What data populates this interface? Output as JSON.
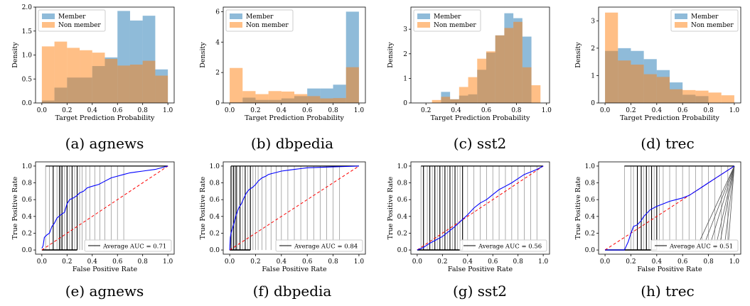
{
  "legend_member": "Member",
  "legend_nonmember": "Non member",
  "colors": {
    "member": "#1f77b4",
    "nonmember": "#ff7f0e",
    "roc": "#0000ff",
    "diag": "#ff0000"
  },
  "chart_data": [
    {
      "type": "bar",
      "id": "hist-agnews",
      "caption": "(a) agnews",
      "xlabel": "Target Prediction Probability",
      "ylabel": "Density",
      "xlim": [
        -0.05,
        1.05
      ],
      "ylim": [
        0,
        2.0
      ],
      "xticks": [
        0.0,
        0.2,
        0.4,
        0.6,
        0.8,
        1.0
      ],
      "xtick_labels": [
        "0.0",
        "0.2",
        "0.4",
        "0.6",
        "0.8",
        "1.0"
      ],
      "yticks": [
        0.0,
        0.5,
        1.0,
        1.5,
        2.0
      ],
      "ytick_labels": [
        "0.0",
        "0.5",
        "1.0",
        "1.5",
        "2.0"
      ],
      "legend_position": "top-left",
      "bin_edges": [
        0.0,
        0.1,
        0.2,
        0.3,
        0.4,
        0.5,
        0.6,
        0.7,
        0.8,
        0.9,
        1.0
      ],
      "series": [
        {
          "name": "Member",
          "values": [
            0.05,
            0.32,
            0.53,
            0.53,
            0.77,
            0.95,
            1.92,
            1.72,
            1.82,
            0.7
          ]
        },
        {
          "name": "Non member",
          "values": [
            1.18,
            1.28,
            1.15,
            1.1,
            1.05,
            0.92,
            0.78,
            0.8,
            0.88,
            0.57
          ]
        }
      ]
    },
    {
      "type": "bar",
      "id": "hist-dbpedia",
      "caption": "(b) dbpedia",
      "xlabel": "Target Prediction Probability",
      "ylabel": "Density",
      "xlim": [
        -0.05,
        1.05
      ],
      "ylim": [
        0,
        6.3
      ],
      "xticks": [
        0.0,
        0.2,
        0.4,
        0.6,
        0.8,
        1.0
      ],
      "xtick_labels": [
        "0.0",
        "0.2",
        "0.4",
        "0.6",
        "0.8",
        "1.0"
      ],
      "yticks": [
        0,
        2,
        4,
        6
      ],
      "ytick_labels": [
        "0",
        "2",
        "4",
        "6"
      ],
      "legend_position": "top-left",
      "bin_edges": [
        0.0,
        0.1,
        0.2,
        0.3,
        0.4,
        0.5,
        0.6,
        0.7,
        0.8,
        0.9,
        1.0
      ],
      "series": [
        {
          "name": "Member",
          "values": [
            0.05,
            0.35,
            0.2,
            0.2,
            0.3,
            0.45,
            0.95,
            0.95,
            1.2,
            6.0
          ]
        },
        {
          "name": "Non member",
          "values": [
            2.3,
            0.78,
            0.58,
            0.78,
            0.75,
            0.58,
            0.45,
            0.3,
            0.32,
            2.35
          ]
        }
      ]
    },
    {
      "type": "bar",
      "id": "hist-sst2",
      "caption": "(c) sst2",
      "xlabel": "Target Prediction Probability",
      "ylabel": "Density",
      "xlim": [
        0.1,
        1.02
      ],
      "ylim": [
        0,
        3.9
      ],
      "xticks": [
        0.2,
        0.4,
        0.6,
        0.8,
        1.0
      ],
      "xtick_labels": [
        "0.2",
        "0.4",
        "0.6",
        "0.8",
        "1.0"
      ],
      "yticks": [
        0,
        1,
        2,
        3
      ],
      "ytick_labels": [
        "0",
        "1",
        "2",
        "3"
      ],
      "legend_position": "top-left",
      "bin_edges": [
        0.24,
        0.3,
        0.36,
        0.42,
        0.48,
        0.54,
        0.6,
        0.66,
        0.72,
        0.78,
        0.84,
        0.9,
        0.96
      ],
      "series": [
        {
          "name": "Member",
          "values": [
            0.0,
            0.45,
            0.15,
            0.3,
            0.35,
            1.35,
            2.05,
            2.75,
            3.65,
            3.45,
            2.7,
            0.0
          ]
        },
        {
          "name": "Non member",
          "values": [
            0.12,
            0.25,
            0.15,
            0.65,
            1.05,
            1.8,
            2.1,
            2.75,
            3.05,
            3.3,
            1.45,
            0.72
          ]
        }
      ]
    },
    {
      "type": "bar",
      "id": "hist-trec",
      "caption": "(d) trec",
      "xlabel": "Target Prediction Probability",
      "ylabel": "Density",
      "xlim": [
        -0.05,
        1.05
      ],
      "ylim": [
        0,
        3.5
      ],
      "xticks": [
        0.0,
        0.2,
        0.4,
        0.6,
        0.8,
        1.0
      ],
      "xtick_labels": [
        "0.0",
        "0.2",
        "0.4",
        "0.6",
        "0.8",
        "1.0"
      ],
      "yticks": [
        0,
        1,
        2,
        3
      ],
      "ytick_labels": [
        "0",
        "1",
        "2",
        "3"
      ],
      "legend_position": "top-right",
      "bin_edges": [
        0.0,
        0.1,
        0.2,
        0.3,
        0.4,
        0.5,
        0.6,
        0.7,
        0.8,
        0.9,
        1.0
      ],
      "series": [
        {
          "name": "Member",
          "values": [
            1.9,
            2.0,
            1.9,
            1.6,
            1.2,
            0.75,
            0.3,
            0.25,
            0.0,
            0.0
          ]
        },
        {
          "name": "Non member",
          "values": [
            3.3,
            1.55,
            1.4,
            1.05,
            0.95,
            0.5,
            0.47,
            0.45,
            0.38,
            0.28
          ]
        }
      ]
    },
    {
      "type": "line",
      "id": "roc-agnews",
      "caption": "(e) agnews",
      "xlabel": "False Positive Rate",
      "ylabel": "True Positive Rate",
      "xlim": [
        -0.05,
        1.05
      ],
      "ylim": [
        -0.05,
        1.05
      ],
      "xticks": [
        0.0,
        0.2,
        0.4,
        0.6,
        0.8,
        1.0
      ],
      "xtick_labels": [
        "0.0",
        "0.2",
        "0.4",
        "0.6",
        "0.8",
        "1.0"
      ],
      "yticks": [
        0.0,
        0.2,
        0.4,
        0.6,
        0.8,
        1.0
      ],
      "ytick_labels": [
        "0.0",
        "0.2",
        "0.4",
        "0.6",
        "0.8",
        "1.0"
      ],
      "legend_position": "bottom-right",
      "legend_label": "Average AUC = 0.71",
      "roc_x": [
        0,
        0.01,
        0.02,
        0.04,
        0.06,
        0.08,
        0.1,
        0.12,
        0.15,
        0.18,
        0.2,
        0.22,
        0.25,
        0.28,
        0.3,
        0.33,
        0.36,
        0.4,
        0.45,
        0.5,
        0.55,
        0.6,
        0.65,
        0.7,
        0.75,
        0.8,
        0.9,
        1.0
      ],
      "roc_y": [
        0.02,
        0.05,
        0.15,
        0.18,
        0.2,
        0.28,
        0.32,
        0.38,
        0.42,
        0.45,
        0.55,
        0.6,
        0.62,
        0.65,
        0.68,
        0.7,
        0.74,
        0.76,
        0.78,
        0.82,
        0.86,
        0.88,
        0.9,
        0.92,
        0.93,
        0.94,
        0.96,
        1.0
      ],
      "threshold_x": [
        0.03,
        0.06,
        0.09,
        0.12,
        0.14,
        0.15,
        0.16,
        0.18,
        0.2,
        0.22,
        0.24,
        0.26,
        0.28,
        0.3,
        0.32,
        0.35,
        0.38,
        0.42,
        0.46,
        0.5,
        0.55,
        0.6,
        0.65
      ],
      "threshold_dark_x": [
        0.09,
        0.14,
        0.16,
        0.2,
        0.24,
        0.28
      ]
    },
    {
      "type": "line",
      "id": "roc-dbpedia",
      "caption": "(f) dbpedia",
      "xlabel": "False Positive Rate",
      "ylabel": "True Positive Rate",
      "xlim": [
        -0.05,
        1.05
      ],
      "ylim": [
        -0.05,
        1.05
      ],
      "xticks": [
        0.0,
        0.2,
        0.4,
        0.6,
        0.8,
        1.0
      ],
      "xtick_labels": [
        "0.0",
        "0.2",
        "0.4",
        "0.6",
        "0.8",
        "1.0"
      ],
      "yticks": [
        0.0,
        0.2,
        0.4,
        0.6,
        0.8,
        1.0
      ],
      "ytick_labels": [
        "0.0",
        "0.2",
        "0.4",
        "0.6",
        "0.8",
        "1.0"
      ],
      "legend_position": "bottom-right",
      "legend_label": "Average AUC = 0.84",
      "roc_x": [
        0,
        0.005,
        0.01,
        0.02,
        0.03,
        0.05,
        0.07,
        0.09,
        0.11,
        0.13,
        0.15,
        0.18,
        0.2,
        0.22,
        0.25,
        0.28,
        0.3,
        0.35,
        0.4,
        0.45,
        0.5,
        0.55,
        0.6,
        0.7,
        0.8,
        0.9,
        1.0
      ],
      "roc_y": [
        0.0,
        0.15,
        0.2,
        0.25,
        0.3,
        0.42,
        0.5,
        0.55,
        0.62,
        0.68,
        0.72,
        0.75,
        0.78,
        0.82,
        0.86,
        0.88,
        0.9,
        0.92,
        0.94,
        0.95,
        0.96,
        0.97,
        0.98,
        0.985,
        0.99,
        0.995,
        1.0
      ],
      "threshold_x": [
        0.01,
        0.02,
        0.03,
        0.04,
        0.05,
        0.06,
        0.08,
        0.1,
        0.12,
        0.14,
        0.16,
        0.18,
        0.2,
        0.22,
        0.25,
        0.28,
        0.32,
        0.36,
        0.4,
        0.45,
        0.5,
        0.55,
        0.6,
        0.65,
        0.7,
        0.75,
        0.8,
        0.85
      ],
      "threshold_dark_x": [
        0.01,
        0.03,
        0.05,
        0.08,
        0.12,
        0.16
      ]
    },
    {
      "type": "line",
      "id": "roc-sst2",
      "caption": "(g) sst2",
      "xlabel": "False Positive Rate",
      "ylabel": "True Positive Rate",
      "xlim": [
        -0.05,
        1.05
      ],
      "ylim": [
        -0.05,
        1.05
      ],
      "xticks": [
        0.0,
        0.2,
        0.4,
        0.6,
        0.8,
        1.0
      ],
      "xtick_labels": [
        "0.0",
        "0.2",
        "0.4",
        "0.6",
        "0.8",
        "1.0"
      ],
      "yticks": [
        0.0,
        0.2,
        0.4,
        0.6,
        0.8,
        1.0
      ],
      "ytick_labels": [
        "0.0",
        "0.2",
        "0.4",
        "0.6",
        "0.8",
        "1.0"
      ],
      "legend_position": "bottom-right",
      "legend_label": "Average AUC = 0.56",
      "roc_x": [
        0,
        0.05,
        0.1,
        0.15,
        0.2,
        0.25,
        0.3,
        0.35,
        0.4,
        0.45,
        0.5,
        0.55,
        0.6,
        0.65,
        0.7,
        0.75,
        0.8,
        0.85,
        0.9,
        0.95,
        1.0
      ],
      "roc_y": [
        0.0,
        0.03,
        0.08,
        0.12,
        0.16,
        0.22,
        0.28,
        0.35,
        0.42,
        0.5,
        0.56,
        0.6,
        0.66,
        0.72,
        0.76,
        0.8,
        0.85,
        0.9,
        0.93,
        0.96,
        1.0
      ],
      "threshold_x": [
        0.03,
        0.05,
        0.08,
        0.1,
        0.12,
        0.14,
        0.16,
        0.18,
        0.2,
        0.22,
        0.24,
        0.26,
        0.28,
        0.3,
        0.32,
        0.34,
        0.36,
        0.4,
        0.45,
        0.5,
        0.55,
        0.6,
        0.65,
        0.7,
        0.75,
        0.8,
        0.85,
        0.9,
        0.95
      ],
      "threshold_dark_x": [
        0.05,
        0.1,
        0.14,
        0.18,
        0.22,
        0.26,
        0.3,
        0.36
      ]
    },
    {
      "type": "line",
      "id": "roc-trec",
      "caption": "(h) trec",
      "xlabel": "False Positive Rate",
      "ylabel": "True Positive Rate",
      "xlim": [
        -0.05,
        1.05
      ],
      "ylim": [
        -0.05,
        1.05
      ],
      "xticks": [
        0.0,
        0.2,
        0.4,
        0.6,
        0.8,
        1.0
      ],
      "xtick_labels": [
        "0.0",
        "0.2",
        "0.4",
        "0.6",
        "0.8",
        "1.0"
      ],
      "yticks": [
        0.0,
        0.2,
        0.4,
        0.6,
        0.8,
        1.0
      ],
      "ytick_labels": [
        "0.0",
        "0.2",
        "0.4",
        "0.6",
        "0.8",
        "1.0"
      ],
      "legend_position": "bottom-right",
      "legend_label": "Average AUC = 0.51",
      "roc_x": [
        0,
        0.15,
        0.18,
        0.2,
        0.22,
        0.25,
        0.28,
        0.3,
        0.35,
        0.4,
        0.45,
        0.5,
        0.55,
        0.6,
        0.65,
        0.7,
        0.75,
        0.8,
        0.85,
        0.9,
        0.95,
        1.0
      ],
      "roc_y": [
        0.0,
        0.0,
        0.1,
        0.2,
        0.28,
        0.3,
        0.35,
        0.4,
        0.48,
        0.52,
        0.55,
        0.58,
        0.6,
        0.62,
        0.65,
        0.7,
        0.75,
        0.8,
        0.85,
        0.9,
        0.95,
        1.0
      ],
      "threshold_x": [
        0.15,
        0.2,
        0.22,
        0.25,
        0.28,
        0.3,
        0.32,
        0.34,
        0.36,
        0.38,
        0.4,
        0.42,
        0.45,
        0.5,
        0.55,
        0.6,
        0.65,
        0.7,
        0.75,
        0.8,
        0.85,
        0.9,
        0.95
      ],
      "threshold_dark_x": [
        0.25,
        0.28,
        0.32,
        0.36,
        0.4
      ],
      "fan_x": [
        0.7,
        0.75,
        0.8,
        0.85,
        0.88,
        0.92,
        0.95
      ]
    }
  ]
}
